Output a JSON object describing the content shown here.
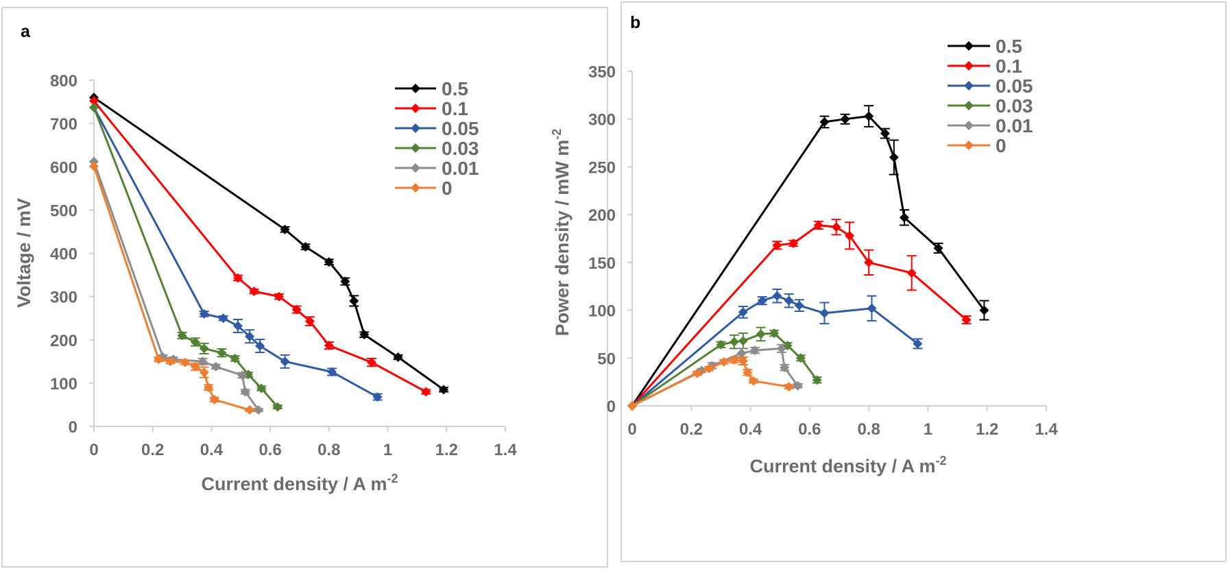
{
  "chart_data": [
    {
      "type": "line",
      "panel_label": "a",
      "xlabel": "Current density / A m",
      "xlabel_sup": "-2",
      "ylabel": "Voltage / mV",
      "xlim": [
        0,
        1.4
      ],
      "ylim": [
        0,
        800
      ],
      "xticks": [
        0,
        0.2,
        0.4,
        0.6,
        0.8,
        1,
        1.2,
        1.4
      ],
      "xtick_labels": [
        "0",
        "0.2",
        "0.4",
        "0.6",
        "0.8",
        "1",
        "1.2",
        "1.4"
      ],
      "yticks": [
        0,
        100,
        200,
        300,
        400,
        500,
        600,
        700,
        800
      ],
      "ytick_labels": [
        "0",
        "100",
        "200",
        "300",
        "400",
        "500",
        "600",
        "700",
        "800"
      ],
      "grid": false,
      "legend_position": "top-right",
      "series": [
        {
          "name": "0.5",
          "color": "#000000",
          "x": [
            0,
            0.65,
            0.72,
            0.8,
            0.855,
            0.885,
            0.92,
            1.035,
            1.19
          ],
          "y": [
            760,
            455,
            415,
            380,
            335,
            290,
            212,
            160,
            85
          ],
          "err": [
            0,
            6,
            6,
            6,
            8,
            12,
            6,
            5,
            5
          ]
        },
        {
          "name": "0.1",
          "color": "#ff0000",
          "x": [
            0,
            0.49,
            0.545,
            0.63,
            0.69,
            0.735,
            0.8,
            0.945,
            1.13
          ],
          "y": [
            752,
            343,
            312,
            300,
            270,
            243,
            187,
            148,
            80
          ],
          "err": [
            0,
            6,
            5,
            6,
            8,
            10,
            8,
            9,
            5
          ]
        },
        {
          "name": "0.05",
          "color": "#2e5aa7",
          "x": [
            0,
            0.375,
            0.44,
            0.49,
            0.53,
            0.565,
            0.65,
            0.81,
            0.965
          ],
          "y": [
            737,
            260,
            250,
            232,
            208,
            186,
            150,
            126,
            68
          ],
          "err": [
            0,
            6,
            5,
            15,
            15,
            15,
            15,
            8,
            7
          ]
        },
        {
          "name": "0.03",
          "color": "#548235",
          "x": [
            0,
            0.3,
            0.345,
            0.375,
            0.435,
            0.48,
            0.525,
            0.57,
            0.625
          ],
          "y": [
            737,
            210,
            195,
            180,
            170,
            157,
            120,
            88,
            45
          ],
          "err": [
            0,
            7,
            9,
            12,
            9,
            6,
            5,
            5,
            4
          ]
        },
        {
          "name": "0.01",
          "color": "#8c8c8c",
          "x": [
            0,
            0.235,
            0.27,
            0.37,
            0.415,
            0.505,
            0.515,
            0.56
          ],
          "y": [
            612,
            160,
            155,
            150,
            138,
            118,
            80,
            38
          ],
          "err": [
            0,
            5,
            5,
            7,
            5,
            6,
            5,
            3
          ]
        },
        {
          "name": "0",
          "color": "#ed7d31",
          "x": [
            0,
            0.22,
            0.26,
            0.31,
            0.345,
            0.375,
            0.39,
            0.41,
            0.53
          ],
          "y": [
            601,
            155,
            150,
            148,
            138,
            125,
            90,
            62,
            38
          ],
          "err": [
            0,
            5,
            5,
            5,
            8,
            12,
            6,
            5,
            3
          ]
        }
      ]
    },
    {
      "type": "line",
      "panel_label": "b",
      "xlabel": "Current density / A m",
      "xlabel_sup": "-2",
      "ylabel": "Power density / mW m",
      "ylabel_sup": "-2",
      "xlim": [
        0,
        1.4
      ],
      "ylim": [
        0,
        350
      ],
      "xticks": [
        0,
        0.2,
        0.4,
        0.6,
        0.8,
        1,
        1.2,
        1.4
      ],
      "xtick_labels": [
        "0",
        "0.2",
        "0.4",
        "0.6",
        "0.8",
        "1",
        "1.2",
        "1.4"
      ],
      "yticks": [
        0,
        50,
        100,
        150,
        200,
        250,
        300,
        350
      ],
      "ytick_labels": [
        "0",
        "50",
        "100",
        "150",
        "200",
        "250",
        "300",
        "350"
      ],
      "grid": false,
      "legend_position": "top-right",
      "series": [
        {
          "name": "0.5",
          "color": "#000000",
          "x": [
            0,
            0.65,
            0.72,
            0.8,
            0.855,
            0.885,
            0.92,
            1.035,
            1.19
          ],
          "y": [
            0,
            297,
            300,
            303,
            285,
            260,
            197,
            165,
            100
          ],
          "err": [
            0,
            6,
            5,
            11,
            5,
            18,
            8,
            5,
            10
          ]
        },
        {
          "name": "0.1",
          "color": "#ff0000",
          "x": [
            0,
            0.49,
            0.545,
            0.63,
            0.69,
            0.735,
            0.8,
            0.945,
            1.13
          ],
          "y": [
            0,
            168,
            170,
            189,
            187,
            178,
            150,
            139,
            90
          ],
          "err": [
            0,
            4,
            3,
            4,
            8,
            14,
            13,
            18,
            4
          ]
        },
        {
          "name": "0.05",
          "color": "#2e5aa7",
          "x": [
            0,
            0.375,
            0.44,
            0.49,
            0.53,
            0.565,
            0.65,
            0.81,
            0.965
          ],
          "y": [
            0,
            98,
            110,
            115,
            110,
            105,
            97,
            102,
            65
          ],
          "err": [
            0,
            6,
            4,
            7,
            7,
            6,
            11,
            13,
            5
          ]
        },
        {
          "name": "0.03",
          "color": "#548235",
          "x": [
            0,
            0.3,
            0.345,
            0.375,
            0.435,
            0.48,
            0.525,
            0.57,
            0.625
          ],
          "y": [
            0,
            64,
            67,
            68,
            75,
            76,
            63,
            50,
            27
          ],
          "err": [
            0,
            3,
            7,
            8,
            7,
            3,
            3,
            3,
            3
          ]
        },
        {
          "name": "0.01",
          "color": "#8c8c8c",
          "x": [
            0,
            0.235,
            0.27,
            0.37,
            0.415,
            0.505,
            0.515,
            0.56
          ],
          "y": [
            0,
            37,
            42,
            55,
            58,
            60,
            40,
            21
          ],
          "err": [
            0,
            2,
            3,
            5,
            3,
            4,
            3,
            2
          ]
        },
        {
          "name": "0",
          "color": "#ed7d31",
          "x": [
            0,
            0.22,
            0.26,
            0.31,
            0.345,
            0.375,
            0.39,
            0.41,
            0.53
          ],
          "y": [
            0,
            34,
            39,
            46,
            48,
            47,
            35,
            26,
            20
          ],
          "err": [
            0,
            2,
            2,
            2,
            3,
            4,
            3,
            2,
            2
          ]
        }
      ]
    }
  ]
}
